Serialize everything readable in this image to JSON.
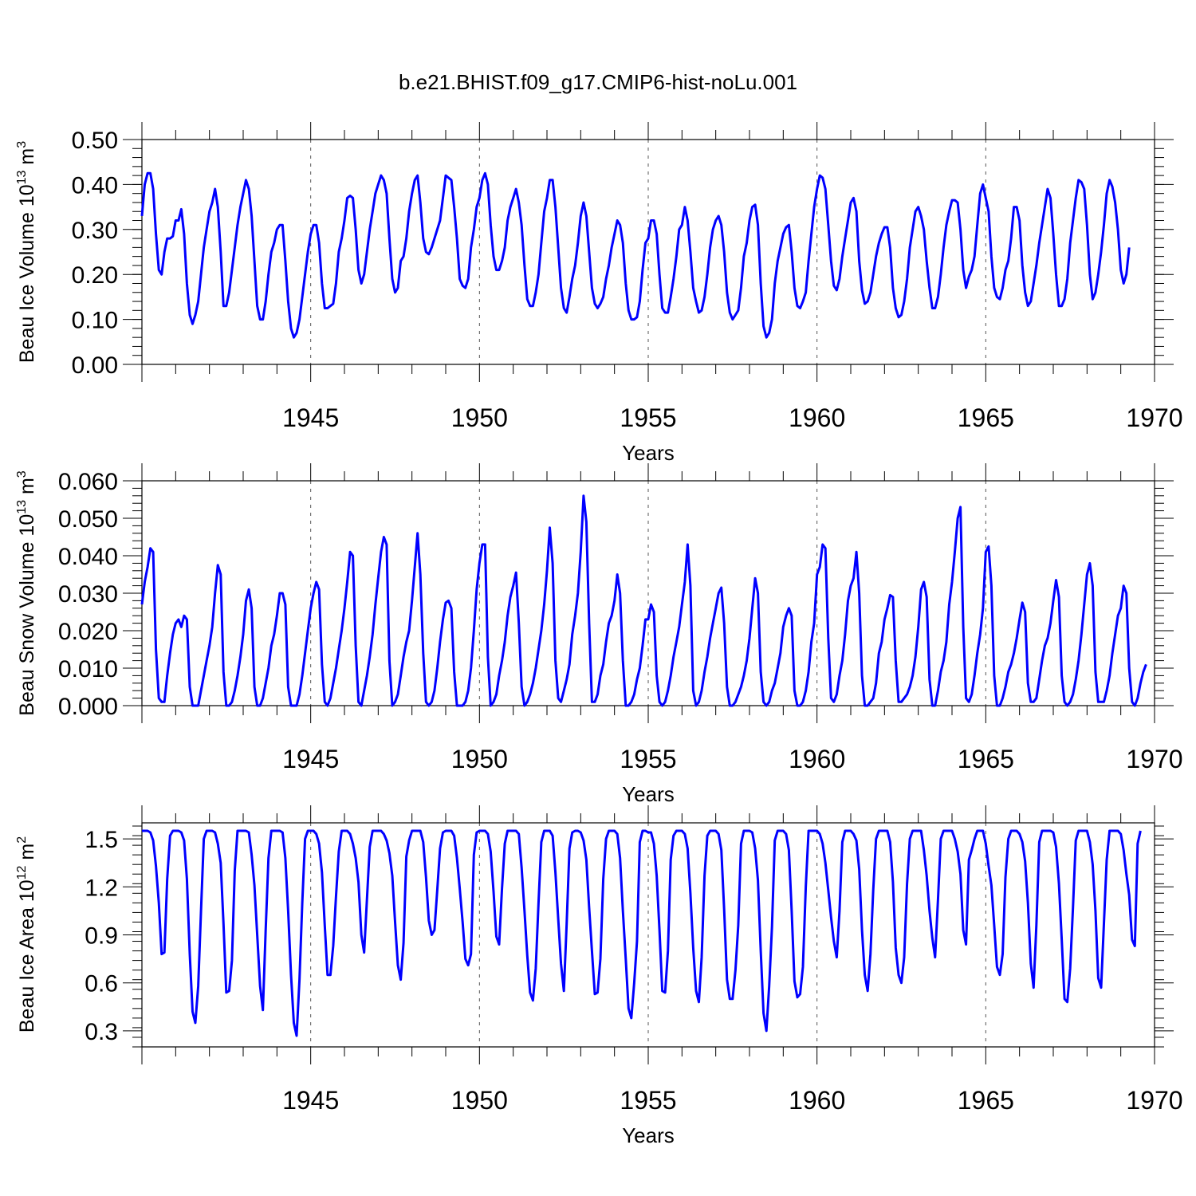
{
  "title": "b.e21.BHIST.f09_g17.CMIP6-hist-noLu.001",
  "chart_data": [
    {
      "type": "line",
      "ylabel": "Beau Ice Volume 10",
      "ylabel_exp": "13",
      "ylabel_unit": "m",
      "ylabel_unit_exp": "3",
      "xlabel": "Years",
      "x_start": 1940.0,
      "x_step": 0.0833333,
      "xlim": [
        1940.0,
        1970.0
      ],
      "ylim": [
        0.0,
        0.5
      ],
      "yticks": [
        "0.00",
        "0.10",
        "0.20",
        "0.30",
        "0.40",
        "0.50"
      ],
      "xticks": [
        "1945",
        "1950",
        "1955",
        "1960",
        "1965",
        "1970"
      ],
      "line_color": "#0000ff",
      "grid": "dashed vertical at labeled years",
      "values": [
        0.33,
        0.4,
        0.425,
        0.425,
        0.39,
        0.29,
        0.21,
        0.2,
        0.25,
        0.28,
        0.28,
        0.285,
        0.32,
        0.32,
        0.345,
        0.29,
        0.18,
        0.11,
        0.09,
        0.11,
        0.14,
        0.2,
        0.26,
        0.3,
        0.34,
        0.36,
        0.39,
        0.35,
        0.25,
        0.13,
        0.13,
        0.16,
        0.21,
        0.26,
        0.31,
        0.35,
        0.38,
        0.41,
        0.39,
        0.33,
        0.23,
        0.13,
        0.1,
        0.1,
        0.14,
        0.2,
        0.25,
        0.27,
        0.3,
        0.31,
        0.31,
        0.23,
        0.14,
        0.08,
        0.06,
        0.07,
        0.1,
        0.15,
        0.2,
        0.25,
        0.29,
        0.31,
        0.31,
        0.27,
        0.18,
        0.125,
        0.125,
        0.13,
        0.135,
        0.18,
        0.25,
        0.28,
        0.32,
        0.37,
        0.375,
        0.37,
        0.3,
        0.21,
        0.18,
        0.2,
        0.25,
        0.3,
        0.34,
        0.38,
        0.4,
        0.42,
        0.41,
        0.38,
        0.28,
        0.19,
        0.16,
        0.17,
        0.23,
        0.24,
        0.28,
        0.34,
        0.38,
        0.41,
        0.42,
        0.36,
        0.28,
        0.25,
        0.245,
        0.26,
        0.28,
        0.3,
        0.32,
        0.37,
        0.42,
        0.415,
        0.41,
        0.35,
        0.28,
        0.19,
        0.175,
        0.17,
        0.19,
        0.26,
        0.3,
        0.35,
        0.37,
        0.41,
        0.425,
        0.4,
        0.31,
        0.24,
        0.21,
        0.21,
        0.23,
        0.26,
        0.32,
        0.35,
        0.37,
        0.39,
        0.36,
        0.31,
        0.22,
        0.145,
        0.13,
        0.13,
        0.16,
        0.2,
        0.27,
        0.34,
        0.37,
        0.41,
        0.41,
        0.35,
        0.26,
        0.17,
        0.125,
        0.115,
        0.15,
        0.19,
        0.22,
        0.27,
        0.33,
        0.36,
        0.33,
        0.25,
        0.17,
        0.135,
        0.125,
        0.135,
        0.15,
        0.19,
        0.22,
        0.26,
        0.29,
        0.32,
        0.31,
        0.27,
        0.18,
        0.12,
        0.1,
        0.1,
        0.105,
        0.14,
        0.21,
        0.27,
        0.28,
        0.32,
        0.32,
        0.29,
        0.2,
        0.125,
        0.115,
        0.115,
        0.15,
        0.19,
        0.24,
        0.3,
        0.31,
        0.35,
        0.32,
        0.25,
        0.17,
        0.14,
        0.115,
        0.12,
        0.15,
        0.2,
        0.26,
        0.3,
        0.32,
        0.33,
        0.31,
        0.25,
        0.16,
        0.115,
        0.1,
        0.11,
        0.12,
        0.17,
        0.24,
        0.27,
        0.32,
        0.35,
        0.355,
        0.31,
        0.18,
        0.085,
        0.06,
        0.07,
        0.1,
        0.18,
        0.23,
        0.26,
        0.29,
        0.305,
        0.31,
        0.25,
        0.17,
        0.13,
        0.125,
        0.14,
        0.16,
        0.23,
        0.29,
        0.35,
        0.39,
        0.42,
        0.415,
        0.39,
        0.31,
        0.23,
        0.175,
        0.165,
        0.19,
        0.24,
        0.28,
        0.32,
        0.36,
        0.37,
        0.34,
        0.23,
        0.165,
        0.135,
        0.14,
        0.16,
        0.2,
        0.24,
        0.27,
        0.29,
        0.305,
        0.305,
        0.26,
        0.17,
        0.125,
        0.105,
        0.11,
        0.14,
        0.19,
        0.26,
        0.3,
        0.34,
        0.35,
        0.33,
        0.3,
        0.23,
        0.17,
        0.125,
        0.125,
        0.15,
        0.2,
        0.26,
        0.31,
        0.34,
        0.365,
        0.365,
        0.36,
        0.3,
        0.21,
        0.17,
        0.195,
        0.21,
        0.24,
        0.31,
        0.38,
        0.4,
        0.37,
        0.34,
        0.24,
        0.17,
        0.15,
        0.145,
        0.17,
        0.21,
        0.23,
        0.28,
        0.35,
        0.35,
        0.32,
        0.22,
        0.16,
        0.13,
        0.14,
        0.18,
        0.22,
        0.27,
        0.31,
        0.35,
        0.39,
        0.37,
        0.29,
        0.2,
        0.13,
        0.13,
        0.145,
        0.19,
        0.27,
        0.32,
        0.37,
        0.41,
        0.405,
        0.39,
        0.31,
        0.2,
        0.145,
        0.16,
        0.2,
        0.25,
        0.31,
        0.38,
        0.41,
        0.395,
        0.36,
        0.3,
        0.21,
        0.18,
        0.2,
        0.26
      ]
    },
    {
      "type": "line",
      "ylabel": "Beau Snow Volume 10",
      "ylabel_exp": "13",
      "ylabel_unit": "m",
      "ylabel_unit_exp": "3",
      "xlabel": "Years",
      "x_start": 1940.0,
      "x_step": 0.0833333,
      "xlim": [
        1940.0,
        1970.0
      ],
      "ylim": [
        0.0,
        0.06
      ],
      "yticks": [
        "0.000",
        "0.010",
        "0.020",
        "0.030",
        "0.040",
        "0.050",
        "0.060"
      ],
      "xticks": [
        "1945",
        "1950",
        "1955",
        "1960",
        "1965",
        "1970"
      ],
      "line_color": "#0000ff",
      "grid": "dashed vertical at labeled years",
      "values": [
        0.027,
        0.033,
        0.037,
        0.042,
        0.041,
        0.015,
        0.002,
        0.001,
        0.001,
        0.008,
        0.014,
        0.019,
        0.022,
        0.023,
        0.021,
        0.024,
        0.023,
        0.005,
        0.0,
        0.0,
        0.0,
        0.004,
        0.008,
        0.012,
        0.016,
        0.021,
        0.03,
        0.0375,
        0.035,
        0.009,
        0.0,
        0.0,
        0.001,
        0.004,
        0.008,
        0.013,
        0.019,
        0.028,
        0.031,
        0.026,
        0.005,
        0.0,
        0.0,
        0.002,
        0.006,
        0.01,
        0.016,
        0.019,
        0.024,
        0.03,
        0.03,
        0.027,
        0.005,
        0.0,
        0.0,
        0.0,
        0.003,
        0.008,
        0.014,
        0.02,
        0.026,
        0.03,
        0.033,
        0.031,
        0.011,
        0.001,
        0.0,
        0.002,
        0.006,
        0.01,
        0.015,
        0.02,
        0.026,
        0.033,
        0.041,
        0.04,
        0.016,
        0.001,
        0.0,
        0.004,
        0.008,
        0.013,
        0.019,
        0.027,
        0.034,
        0.041,
        0.045,
        0.043,
        0.012,
        0.0,
        0.001,
        0.003,
        0.008,
        0.013,
        0.017,
        0.02,
        0.028,
        0.037,
        0.046,
        0.035,
        0.014,
        0.001,
        0.0,
        0.001,
        0.004,
        0.01,
        0.017,
        0.023,
        0.0275,
        0.028,
        0.026,
        0.009,
        0.0,
        0.0,
        0.0,
        0.001,
        0.004,
        0.01,
        0.02,
        0.031,
        0.038,
        0.043,
        0.043,
        0.013,
        0.0,
        0.001,
        0.003,
        0.008,
        0.012,
        0.017,
        0.024,
        0.029,
        0.032,
        0.0355,
        0.022,
        0.005,
        0.0,
        0.001,
        0.003,
        0.006,
        0.01,
        0.015,
        0.02,
        0.027,
        0.036,
        0.0475,
        0.038,
        0.012,
        0.002,
        0.001,
        0.004,
        0.007,
        0.011,
        0.019,
        0.024,
        0.03,
        0.041,
        0.056,
        0.049,
        0.022,
        0.001,
        0.001,
        0.003,
        0.008,
        0.011,
        0.017,
        0.022,
        0.024,
        0.028,
        0.035,
        0.03,
        0.012,
        0.0,
        0.0,
        0.001,
        0.003,
        0.007,
        0.01,
        0.016,
        0.023,
        0.023,
        0.027,
        0.025,
        0.008,
        0.001,
        0.0,
        0.001,
        0.004,
        0.008,
        0.013,
        0.017,
        0.021,
        0.027,
        0.033,
        0.043,
        0.032,
        0.004,
        0.0,
        0.001,
        0.004,
        0.009,
        0.013,
        0.018,
        0.022,
        0.026,
        0.03,
        0.0315,
        0.022,
        0.005,
        0.0,
        0.0,
        0.001,
        0.003,
        0.005,
        0.008,
        0.012,
        0.018,
        0.026,
        0.034,
        0.03,
        0.009,
        0.001,
        0.0,
        0.001,
        0.004,
        0.006,
        0.01,
        0.014,
        0.021,
        0.024,
        0.026,
        0.024,
        0.004,
        0.0,
        0.0,
        0.001,
        0.004,
        0.009,
        0.017,
        0.022,
        0.035,
        0.037,
        0.043,
        0.042,
        0.018,
        0.002,
        0.001,
        0.003,
        0.008,
        0.012,
        0.019,
        0.028,
        0.032,
        0.034,
        0.041,
        0.03,
        0.008,
        0.0,
        0.0,
        0.001,
        0.002,
        0.006,
        0.014,
        0.017,
        0.023,
        0.026,
        0.0295,
        0.029,
        0.012,
        0.001,
        0.001,
        0.002,
        0.003,
        0.005,
        0.008,
        0.013,
        0.021,
        0.031,
        0.033,
        0.029,
        0.007,
        0.0,
        0.0,
        0.004,
        0.009,
        0.012,
        0.017,
        0.027,
        0.033,
        0.041,
        0.05,
        0.053,
        0.021,
        0.002,
        0.001,
        0.003,
        0.008,
        0.014,
        0.019,
        0.026,
        0.041,
        0.0425,
        0.032,
        0.008,
        0.0,
        0.0,
        0.002,
        0.005,
        0.009,
        0.011,
        0.014,
        0.018,
        0.023,
        0.0275,
        0.025,
        0.006,
        0.001,
        0.001,
        0.002,
        0.007,
        0.012,
        0.016,
        0.018,
        0.022,
        0.028,
        0.0335,
        0.029,
        0.008,
        0.001,
        0.0,
        0.001,
        0.003,
        0.007,
        0.012,
        0.019,
        0.027,
        0.035,
        0.038,
        0.032,
        0.009,
        0.001,
        0.001,
        0.001,
        0.004,
        0.008,
        0.014,
        0.019,
        0.024,
        0.026,
        0.032,
        0.03,
        0.01,
        0.001,
        0.0,
        0.002,
        0.006,
        0.009,
        0.011
      ]
    },
    {
      "type": "line",
      "ylabel": "Beau Ice Area 10",
      "ylabel_exp": "12",
      "ylabel_unit": "m",
      "ylabel_unit_exp": "2",
      "xlabel": "Years",
      "x_start": 1940.0,
      "x_step": 0.0833333,
      "xlim": [
        1940.0,
        1970.0
      ],
      "ylim": [
        0.2,
        1.6
      ],
      "yticks": [
        "0.3",
        "0.6",
        "0.9",
        "1.2",
        "1.5"
      ],
      "ytick_values": [
        0.3,
        0.6,
        0.9,
        1.2,
        1.5
      ],
      "xticks": [
        "1945",
        "1950",
        "1955",
        "1960",
        "1965",
        "1970"
      ],
      "line_color": "#0000ff",
      "grid": "dashed vertical at labeled years",
      "values": [
        1.55,
        1.55,
        1.55,
        1.54,
        1.49,
        1.33,
        1.1,
        0.78,
        0.79,
        1.25,
        1.52,
        1.55,
        1.55,
        1.55,
        1.54,
        1.49,
        1.25,
        0.78,
        0.42,
        0.35,
        0.58,
        1.05,
        1.5,
        1.55,
        1.55,
        1.55,
        1.54,
        1.47,
        1.35,
        0.97,
        0.54,
        0.55,
        0.74,
        1.3,
        1.55,
        1.55,
        1.55,
        1.55,
        1.54,
        1.4,
        1.21,
        0.9,
        0.58,
        0.43,
        0.93,
        1.38,
        1.55,
        1.55,
        1.55,
        1.55,
        1.54,
        1.38,
        1.05,
        0.65,
        0.35,
        0.27,
        0.62,
        1.1,
        1.5,
        1.55,
        1.55,
        1.55,
        1.53,
        1.47,
        1.29,
        0.96,
        0.65,
        0.65,
        0.83,
        1.14,
        1.42,
        1.55,
        1.55,
        1.55,
        1.53,
        1.47,
        1.38,
        1.23,
        0.9,
        0.79,
        1.12,
        1.45,
        1.55,
        1.55,
        1.55,
        1.55,
        1.53,
        1.49,
        1.41,
        1.27,
        0.98,
        0.71,
        0.62,
        0.85,
        1.39,
        1.49,
        1.55,
        1.55,
        1.55,
        1.55,
        1.48,
        1.26,
        0.99,
        0.9,
        0.93,
        1.18,
        1.44,
        1.54,
        1.55,
        1.55,
        1.55,
        1.52,
        1.38,
        1.19,
        0.98,
        0.75,
        0.71,
        0.78,
        1.4,
        1.54,
        1.55,
        1.55,
        1.55,
        1.53,
        1.42,
        1.17,
        0.89,
        0.84,
        1.19,
        1.47,
        1.55,
        1.55,
        1.55,
        1.55,
        1.53,
        1.32,
        1.05,
        0.77,
        0.54,
        0.49,
        0.69,
        1.1,
        1.48,
        1.55,
        1.55,
        1.55,
        1.52,
        1.29,
        1.0,
        0.72,
        0.55,
        0.97,
        1.44,
        1.54,
        1.55,
        1.55,
        1.54,
        1.49,
        1.37,
        1.07,
        0.8,
        0.53,
        0.54,
        0.75,
        1.25,
        1.5,
        1.55,
        1.55,
        1.55,
        1.53,
        1.38,
        1.05,
        0.75,
        0.44,
        0.38,
        0.6,
        0.86,
        1.48,
        1.55,
        1.55,
        1.54,
        1.54,
        1.47,
        1.27,
        0.93,
        0.55,
        0.54,
        0.8,
        1.37,
        1.52,
        1.55,
        1.55,
        1.55,
        1.53,
        1.44,
        1.16,
        0.82,
        0.55,
        0.48,
        0.76,
        1.27,
        1.52,
        1.55,
        1.55,
        1.55,
        1.53,
        1.43,
        1.06,
        0.62,
        0.5,
        0.5,
        0.68,
        0.96,
        1.47,
        1.55,
        1.55,
        1.55,
        1.54,
        1.44,
        1.24,
        0.8,
        0.41,
        0.3,
        0.58,
        0.95,
        1.49,
        1.55,
        1.55,
        1.55,
        1.53,
        1.43,
        1.05,
        0.61,
        0.51,
        0.53,
        0.7,
        1.2,
        1.55,
        1.55,
        1.55,
        1.55,
        1.53,
        1.47,
        1.35,
        1.18,
        1.01,
        0.86,
        0.76,
        1.05,
        1.48,
        1.55,
        1.55,
        1.55,
        1.53,
        1.49,
        1.31,
        0.93,
        0.65,
        0.55,
        0.78,
        1.18,
        1.5,
        1.55,
        1.55,
        1.55,
        1.55,
        1.48,
        1.23,
        0.82,
        0.65,
        0.6,
        0.76,
        1.22,
        1.5,
        1.55,
        1.55,
        1.55,
        1.55,
        1.43,
        1.27,
        1.05,
        0.88,
        0.76,
        1.12,
        1.5,
        1.55,
        1.55,
        1.55,
        1.55,
        1.5,
        1.42,
        1.28,
        0.93,
        0.84,
        1.37,
        1.43,
        1.5,
        1.55,
        1.55,
        1.55,
        1.47,
        1.33,
        1.21,
        0.96,
        0.7,
        0.65,
        0.78,
        1.26,
        1.5,
        1.55,
        1.55,
        1.55,
        1.53,
        1.48,
        1.36,
        1.1,
        0.72,
        0.57,
        0.96,
        1.48,
        1.55,
        1.55,
        1.55,
        1.55,
        1.54,
        1.45,
        1.22,
        0.87,
        0.5,
        0.48,
        0.69,
        1.07,
        1.49,
        1.55,
        1.55,
        1.55,
        1.55,
        1.48,
        1.34,
        1.05,
        0.63,
        0.57,
        0.97,
        1.37,
        1.55,
        1.55,
        1.55,
        1.55,
        1.53,
        1.43,
        1.28,
        1.15,
        0.87,
        0.83,
        1.47,
        1.55
      ]
    }
  ]
}
